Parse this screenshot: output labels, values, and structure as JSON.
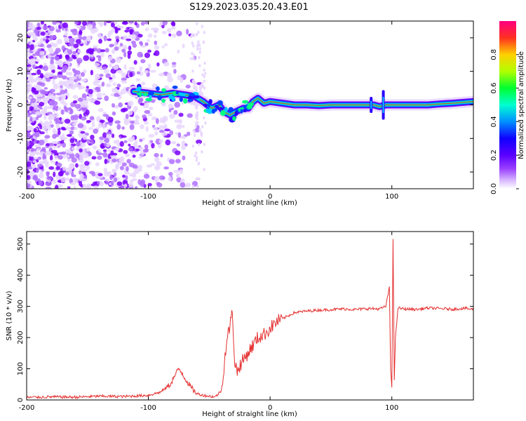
{
  "figure_title": "S129.2023.035.20.43.E01",
  "colors": {
    "snr_line": "#e53030",
    "colormap": [
      "#ffffff",
      "#e8d6ff",
      "#b070ff",
      "#7a00ff",
      "#2a00ff",
      "#0044ff",
      "#00c8ff",
      "#00ff80",
      "#80ff00",
      "#ffe000",
      "#ff8000",
      "#ff2030",
      "#ff0080"
    ]
  },
  "chart_data": [
    {
      "type": "heatmap",
      "title": "",
      "xlabel": "Height of straight line (km)",
      "ylabel": "Frequency (Hz)",
      "xlim": [
        -200,
        167
      ],
      "ylim": [
        -25,
        25
      ],
      "xticks": [
        -200,
        -100,
        0,
        100
      ],
      "yticks": [
        -20,
        -10,
        0,
        10,
        20
      ],
      "grid": false,
      "colorbar": {
        "label": "Normalized spectral amplitude",
        "range": [
          0.0,
          1.0
        ],
        "ticks": [
          "0.0",
          "0.2",
          "0.4",
          "0.6",
          "0.8"
        ]
      },
      "ridge": {
        "x": [
          -112,
          -100,
          -90,
          -80,
          -70,
          -62,
          -55,
          -48,
          -42,
          -38,
          -33,
          -28,
          -22,
          -18,
          -14,
          -10,
          -5,
          0,
          10,
          20,
          30,
          40,
          50,
          60,
          70,
          80,
          85,
          90,
          95,
          100,
          110,
          120,
          130,
          140,
          150,
          160,
          167
        ],
        "y": [
          4,
          3.5,
          3,
          3.5,
          3,
          2.5,
          1,
          -1,
          0,
          -2,
          -3,
          -2,
          -1,
          -1,
          1,
          2,
          0.5,
          1,
          0.5,
          0,
          0,
          -0.2,
          0,
          0,
          0,
          0,
          0,
          -0.5,
          0,
          0,
          0,
          0,
          0,
          0.3,
          0.5,
          0.8,
          1
        ]
      }
    },
    {
      "type": "line",
      "title": "",
      "xlabel": "Height of straight line (km)",
      "ylabel": "SNR (10 * v/v)",
      "xlim": [
        -200,
        167
      ],
      "ylim": [
        0,
        540
      ],
      "xticks": [
        -200,
        -100,
        0,
        100
      ],
      "yticks": [
        0,
        100,
        200,
        300,
        400,
        500
      ],
      "grid": false,
      "series": [
        {
          "x": [
            -200,
            -180,
            -160,
            -140,
            -120,
            -100,
            -90,
            -82,
            -78,
            -75,
            -72,
            -70,
            -65,
            -60,
            -55,
            -50,
            -45,
            -40,
            -36,
            -33,
            -31,
            -29,
            -27,
            -25,
            -20,
            -15,
            -10,
            -5,
            0,
            5,
            10,
            15,
            20,
            30,
            40,
            50,
            60,
            70,
            80,
            90,
            95,
            98,
            99,
            100,
            101,
            102,
            103,
            105,
            110,
            120,
            130,
            140,
            150,
            160,
            167
          ],
          "y": [
            8,
            10,
            9,
            12,
            11,
            15,
            25,
            50,
            80,
            100,
            85,
            70,
            40,
            20,
            15,
            12,
            10,
            30,
            180,
            240,
            280,
            120,
            90,
            110,
            140,
            170,
            200,
            210,
            230,
            250,
            260,
            270,
            280,
            285,
            288,
            290,
            292,
            290,
            293,
            292,
            300,
            360,
            100,
            40,
            520,
            60,
            200,
            295,
            292,
            290,
            295,
            293,
            291,
            294,
            290
          ]
        }
      ]
    }
  ]
}
